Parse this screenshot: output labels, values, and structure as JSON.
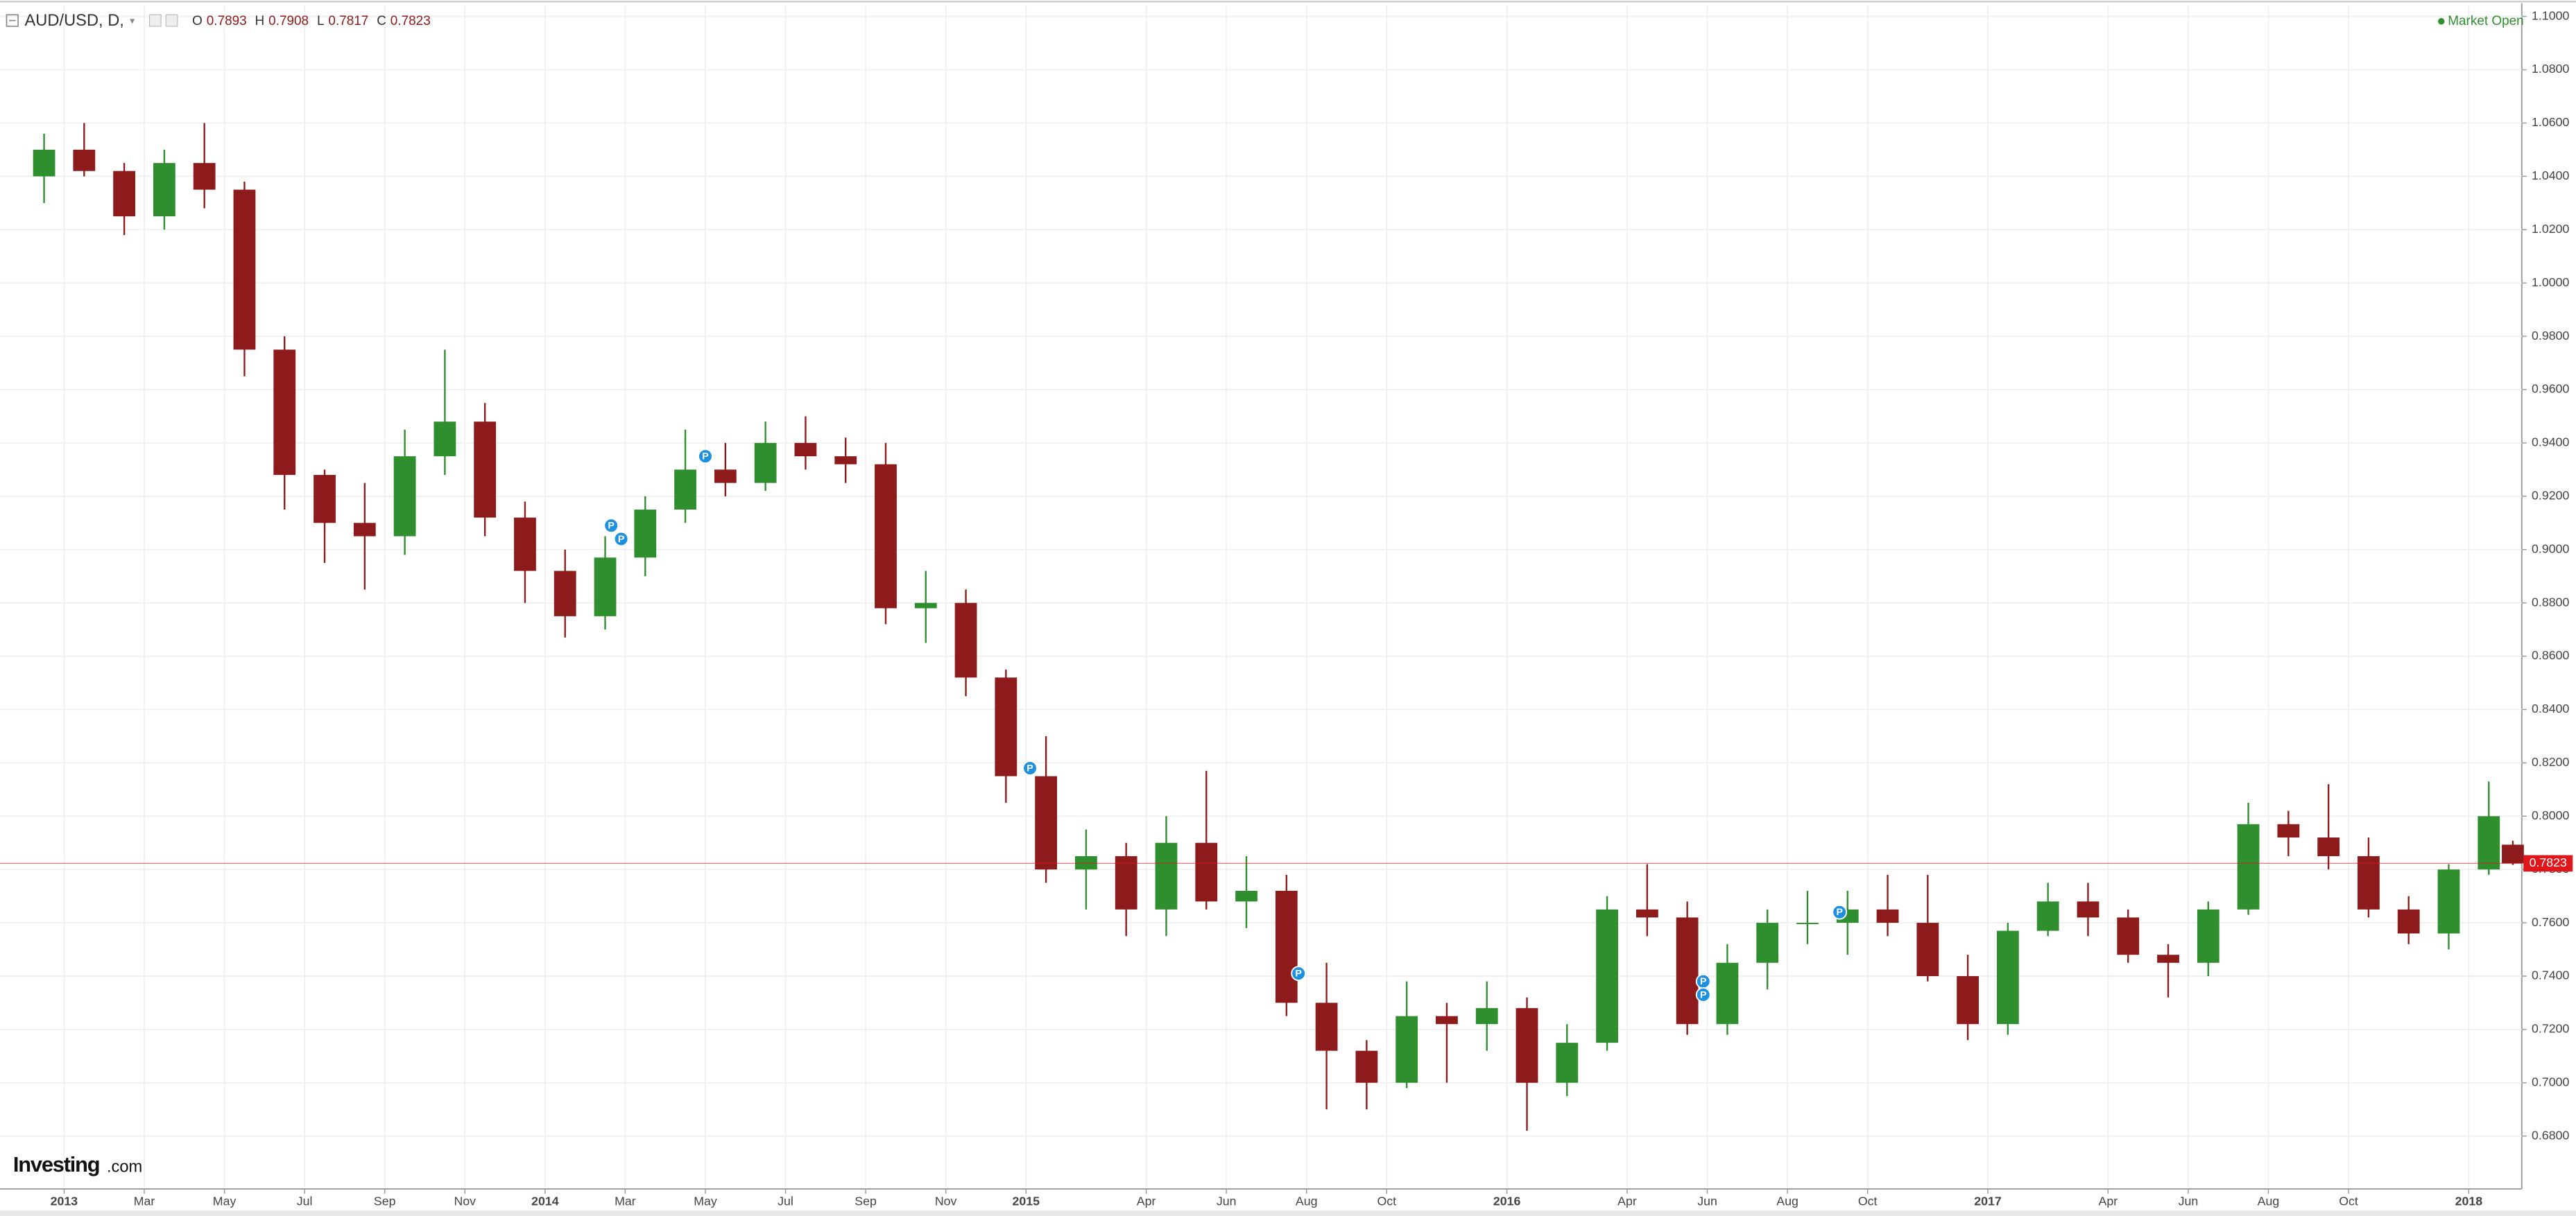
{
  "header": {
    "symbol": "AUD/USD, D,",
    "ohlc": [
      {
        "key": "O",
        "value": "0.7893"
      },
      {
        "key": "H",
        "value": "0.7908"
      },
      {
        "key": "L",
        "value": "0.7817"
      },
      {
        "key": "C",
        "value": "0.7823"
      }
    ],
    "status": "Market Open",
    "logo": "Investing",
    "logo_suffix": ".com"
  },
  "chart_data": {
    "type": "candlestick",
    "x": [
      -0.5,
      0.5,
      1.5,
      2.5,
      3.5,
      4.5,
      5.5,
      6.5,
      7.5,
      8.5,
      9.5,
      10.5,
      11.5,
      12.5,
      13.5,
      14.5,
      15.5,
      16.5,
      17.5,
      18.5,
      19.5,
      20.5,
      21.5,
      22.5,
      23.5,
      24.5,
      25.5,
      26.5,
      27.5,
      28.5,
      29.5,
      30.5,
      31.5,
      32.5,
      33.5,
      34.5,
      35.5,
      36.5,
      37.5,
      38.5,
      39.5,
      40.5,
      41.5,
      42.5,
      43.5,
      44.5,
      45.5,
      46.5,
      47.5,
      48.5,
      49.5,
      50.5,
      51.5,
      52.5,
      53.5,
      54.5,
      55.5,
      56.5,
      57.5,
      58.5,
      59.5,
      60.5,
      61.1
    ],
    "open": [
      1.04,
      1.05,
      1.042,
      1.025,
      1.045,
      1.035,
      0.975,
      0.928,
      0.91,
      0.905,
      0.935,
      0.948,
      0.912,
      0.892,
      0.875,
      0.897,
      0.915,
      0.93,
      0.925,
      0.94,
      0.935,
      0.932,
      0.878,
      0.88,
      0.852,
      0.815,
      0.78,
      0.785,
      0.765,
      0.79,
      0.768,
      0.772,
      0.73,
      0.712,
      0.7,
      0.725,
      0.722,
      0.728,
      0.7,
      0.715,
      0.765,
      0.762,
      0.722,
      0.745,
      0.76,
      0.76,
      0.765,
      0.76,
      0.74,
      0.722,
      0.757,
      0.768,
      0.762,
      0.748,
      0.745,
      0.765,
      0.797,
      0.792,
      0.785,
      0.765,
      0.756,
      0.78,
      0.7893
    ],
    "high": [
      1.056,
      1.06,
      1.045,
      1.05,
      1.06,
      1.038,
      0.98,
      0.93,
      0.925,
      0.945,
      0.975,
      0.955,
      0.918,
      0.9,
      0.905,
      0.92,
      0.945,
      0.94,
      0.948,
      0.95,
      0.942,
      0.94,
      0.892,
      0.885,
      0.855,
      0.83,
      0.795,
      0.79,
      0.8,
      0.817,
      0.785,
      0.778,
      0.745,
      0.716,
      0.738,
      0.73,
      0.738,
      0.732,
      0.722,
      0.77,
      0.782,
      0.768,
      0.752,
      0.765,
      0.772,
      0.772,
      0.778,
      0.778,
      0.748,
      0.76,
      0.775,
      0.775,
      0.765,
      0.752,
      0.768,
      0.805,
      0.802,
      0.812,
      0.792,
      0.77,
      0.782,
      0.813,
      0.7908
    ],
    "low": [
      1.03,
      1.04,
      1.018,
      1.02,
      1.028,
      0.965,
      0.915,
      0.895,
      0.885,
      0.898,
      0.928,
      0.905,
      0.88,
      0.867,
      0.87,
      0.89,
      0.91,
      0.92,
      0.922,
      0.93,
      0.925,
      0.872,
      0.865,
      0.845,
      0.805,
      0.775,
      0.765,
      0.755,
      0.755,
      0.765,
      0.758,
      0.725,
      0.69,
      0.69,
      0.698,
      0.7,
      0.712,
      0.682,
      0.695,
      0.712,
      0.755,
      0.718,
      0.718,
      0.735,
      0.752,
      0.748,
      0.755,
      0.738,
      0.716,
      0.718,
      0.755,
      0.755,
      0.745,
      0.732,
      0.74,
      0.763,
      0.785,
      0.78,
      0.762,
      0.752,
      0.75,
      0.778,
      0.7817
    ],
    "close": [
      1.05,
      1.042,
      1.025,
      1.045,
      1.035,
      0.975,
      0.928,
      0.91,
      0.905,
      0.935,
      0.948,
      0.912,
      0.892,
      0.875,
      0.897,
      0.915,
      0.93,
      0.925,
      0.94,
      0.935,
      0.932,
      0.878,
      0.88,
      0.852,
      0.815,
      0.78,
      0.785,
      0.765,
      0.79,
      0.768,
      0.772,
      0.73,
      0.712,
      0.7,
      0.725,
      0.722,
      0.728,
      0.7,
      0.715,
      0.765,
      0.762,
      0.722,
      0.745,
      0.76,
      0.76,
      0.765,
      0.76,
      0.74,
      0.722,
      0.757,
      0.768,
      0.762,
      0.748,
      0.745,
      0.765,
      0.797,
      0.792,
      0.785,
      0.765,
      0.756,
      0.78,
      0.8,
      0.7823
    ],
    "up_color": "#2f8f2f",
    "down_color": "#8e1b1b",
    "xlim": [
      -1.6,
      61.2
    ],
    "ylim": [
      0.6608,
      1.1043
    ],
    "xticks": [
      {
        "value": 0,
        "label": "2013"
      },
      {
        "value": 2,
        "label": "Mar"
      },
      {
        "value": 4,
        "label": "May"
      },
      {
        "value": 6,
        "label": "Jul"
      },
      {
        "value": 8,
        "label": "Sep"
      },
      {
        "value": 10,
        "label": "Nov"
      },
      {
        "value": 12,
        "label": "2014"
      },
      {
        "value": 14,
        "label": "Mar"
      },
      {
        "value": 16,
        "label": "May"
      },
      {
        "value": 18,
        "label": "Jul"
      },
      {
        "value": 20,
        "label": "Sep"
      },
      {
        "value": 22,
        "label": "Nov"
      },
      {
        "value": 24,
        "label": "2015"
      },
      {
        "value": 27,
        "label": "Apr"
      },
      {
        "value": 29,
        "label": "Jun"
      },
      {
        "value": 31,
        "label": "Aug"
      },
      {
        "value": 33,
        "label": "Oct"
      },
      {
        "value": 36,
        "label": "2016"
      },
      {
        "value": 39,
        "label": "Apr"
      },
      {
        "value": 41,
        "label": "Jun"
      },
      {
        "value": 43,
        "label": "Aug"
      },
      {
        "value": 45,
        "label": "Oct"
      },
      {
        "value": 48,
        "label": "2017"
      },
      {
        "value": 51,
        "label": "Apr"
      },
      {
        "value": 53,
        "label": "Jun"
      },
      {
        "value": 55,
        "label": "Aug"
      },
      {
        "value": 57,
        "label": "Oct"
      },
      {
        "value": 60,
        "label": "2018"
      }
    ],
    "yticks": [
      {
        "value": 0.68,
        "label": "0.6800"
      },
      {
        "value": 0.7,
        "label": "0.7000"
      },
      {
        "value": 0.72,
        "label": "0.7200"
      },
      {
        "value": 0.74,
        "label": "0.7400"
      },
      {
        "value": 0.76,
        "label": "0.7600"
      },
      {
        "value": 0.78,
        "label": "0.7800"
      },
      {
        "value": 0.8,
        "label": "0.8000"
      },
      {
        "value": 0.82,
        "label": "0.8200"
      },
      {
        "value": 0.84,
        "label": "0.8400"
      },
      {
        "value": 0.86,
        "label": "0.8600"
      },
      {
        "value": 0.88,
        "label": "0.8800"
      },
      {
        "value": 0.9,
        "label": "0.9000"
      },
      {
        "value": 0.92,
        "label": "0.9200"
      },
      {
        "value": 0.94,
        "label": "0.9400"
      },
      {
        "value": 0.96,
        "label": "0.9600"
      },
      {
        "value": 0.98,
        "label": "0.9800"
      },
      {
        "value": 1.0,
        "label": "1.0000"
      },
      {
        "value": 1.02,
        "label": "1.0200"
      },
      {
        "value": 1.04,
        "label": "1.0400"
      },
      {
        "value": 1.06,
        "label": "1.0600"
      },
      {
        "value": 1.08,
        "label": "1.0800"
      },
      {
        "value": 1.1,
        "label": "1.1000"
      }
    ],
    "grid": true,
    "last_price": 0.7823,
    "last_price_color": "#e0161b",
    "events": [
      {
        "x": 13.65,
        "y": 0.909,
        "label": "P"
      },
      {
        "x": 13.9,
        "y": 0.904,
        "label": "P"
      },
      {
        "x": 16.0,
        "y": 0.935,
        "label": "P"
      },
      {
        "x": 24.1,
        "y": 0.818,
        "label": "P"
      },
      {
        "x": 30.8,
        "y": 0.741,
        "label": "P"
      },
      {
        "x": 40.9,
        "y": 0.738,
        "label": "P"
      },
      {
        "x": 40.9,
        "y": 0.733,
        "label": "P"
      },
      {
        "x": 44.3,
        "y": 0.764,
        "label": "P"
      }
    ],
    "event_color": "#1e90e0"
  }
}
